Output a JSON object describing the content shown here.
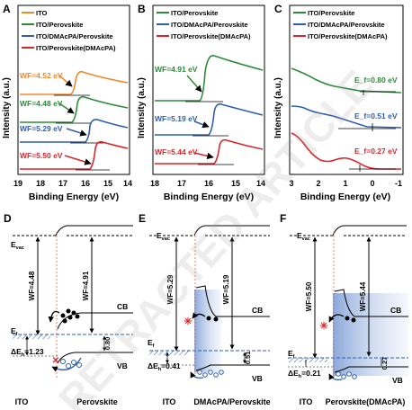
{
  "panels": {
    "A": {
      "letter": "A",
      "xlabel": "Binding Energy (eV)",
      "ylabel": "Intensity (a.u.)",
      "legend": [
        "ITO",
        "ITO/Perovskite",
        "ITO/DMAcPA/Perovskite",
        "ITO/Perovskite(DMAcPA)"
      ],
      "wf": [
        "WF=4.52 eV",
        "WF=4.48 eV",
        "WF=5.29 eV",
        "WF=5.50 eV"
      ],
      "ticks": [
        "19",
        "18",
        "17",
        "16",
        "15",
        "14"
      ]
    },
    "B": {
      "letter": "B",
      "xlabel": "Binding Energy (eV)",
      "ylabel": "Intensity (a.u.)",
      "legend": [
        "ITO/Perovskite",
        "ITO/DMAcPA/Perovskite",
        "ITO/Perovskite(DMAcPA)"
      ],
      "wf": [
        "WF=4.91 eV",
        "WF=5.19 eV",
        "WF=5.44 eV"
      ],
      "ticks": [
        "18",
        "17",
        "16",
        "15",
        "14"
      ]
    },
    "C": {
      "letter": "C",
      "xlabel": "Binding Energy (eV)",
      "ylabel": "Intensity (a.u.)",
      "legend": [
        "ITO/Perovskite",
        "ITO/DMAcPA/Perovskite",
        "ITO/Perovskite(DMAcPA)"
      ],
      "ef": [
        "E_f=0.80 eV",
        "E_f=0.51 eV",
        "E_f=0.27 eV"
      ],
      "ticks": [
        "3",
        "2",
        "1",
        "0",
        "-1"
      ]
    },
    "D": {
      "letter": "D",
      "evac": "E",
      "evac_sub": "vac",
      "ef": "E",
      "ef_sub": "f",
      "wf_left": "WF=4.48",
      "wf_right": "WF=4.91",
      "cb": "CB",
      "vb": "VB",
      "gap": "0.80",
      "dEh": "ΔE",
      "dEh_sub": "h",
      "dEh_val": "=1.23",
      "bottom_left": "ITO",
      "bottom_right": "Perovskite"
    },
    "E": {
      "letter": "E",
      "evac": "E",
      "evac_sub": "vac",
      "ef": "E",
      "ef_sub": "f",
      "wf_left": "WF=5.29",
      "wf_right": "WF=5.19",
      "cb": "CB",
      "vb": "VB",
      "gap": "0.51",
      "dEh": "ΔE",
      "dEh_sub": "h",
      "dEh_val": "=0.41",
      "bottom_left": "ITO",
      "bottom_right": "DMAcPA/Perovskite"
    },
    "F": {
      "letter": "F",
      "evac": "E",
      "evac_sub": "vac",
      "ef": "E",
      "ef_sub": "f",
      "wf_left": "WF=5.50",
      "wf_right": "WF=5.44",
      "cb": "CB",
      "vb": "VB",
      "gap": "0.27",
      "dEh": "ΔE",
      "dEh_sub": "h",
      "dEh_val": "=0.21",
      "bottom_left": "ITO",
      "bottom_right": "Perovskite(DMAcPA)"
    }
  },
  "watermark": "RETRACTED ARTICLE",
  "colors": {
    "orange": "#f0882a",
    "green": "#2e8b3a",
    "blue": "#2f5fae",
    "red": "#d9262c",
    "dark": "#222222",
    "band": "#a9bfe3"
  },
  "chart_data": [
    {
      "type": "line",
      "panel": "A",
      "xlabel": "Binding Energy (eV)",
      "ylabel": "Intensity (a.u.)",
      "xlim": [
        19,
        14
      ],
      "series": [
        {
          "name": "ITO",
          "cutoff": 16.68,
          "work_function": "4.52 eV",
          "color": "#f0882a"
        },
        {
          "name": "ITO/Perovskite",
          "cutoff": 16.72,
          "work_function": "4.48 eV",
          "color": "#2e8b3a"
        },
        {
          "name": "ITO/DMAcPA/Perovskite",
          "cutoff": 15.91,
          "work_function": "5.29 eV",
          "color": "#2f5fae"
        },
        {
          "name": "ITO/Perovskite(DMAcPA)",
          "cutoff": 15.7,
          "work_function": "5.50 eV",
          "color": "#d9262c"
        }
      ]
    },
    {
      "type": "line",
      "panel": "B",
      "xlabel": "Binding Energy (eV)",
      "ylabel": "Intensity (a.u.)",
      "xlim": [
        18,
        14
      ],
      "series": [
        {
          "name": "ITO/Perovskite",
          "cutoff": 16.29,
          "work_function": "4.91 eV",
          "color": "#2e8b3a"
        },
        {
          "name": "ITO/DMAcPA/Perovskite",
          "cutoff": 16.01,
          "work_function": "5.19 eV",
          "color": "#2f5fae"
        },
        {
          "name": "ITO/Perovskite(DMAcPA)",
          "cutoff": 15.76,
          "work_function": "5.44 eV",
          "color": "#d9262c"
        }
      ]
    },
    {
      "type": "line",
      "panel": "C",
      "xlabel": "Binding Energy (eV)",
      "ylabel": "Intensity (a.u.)",
      "xlim": [
        3,
        -1
      ],
      "series": [
        {
          "name": "ITO/Perovskite",
          "onset": 0.8,
          "color": "#2e8b3a"
        },
        {
          "name": "ITO/DMAcPA/Perovskite",
          "onset": 0.51,
          "color": "#2f5fae"
        },
        {
          "name": "ITO/Perovskite(DMAcPA)",
          "onset": 0.27,
          "color": "#d9262c"
        }
      ]
    }
  ]
}
